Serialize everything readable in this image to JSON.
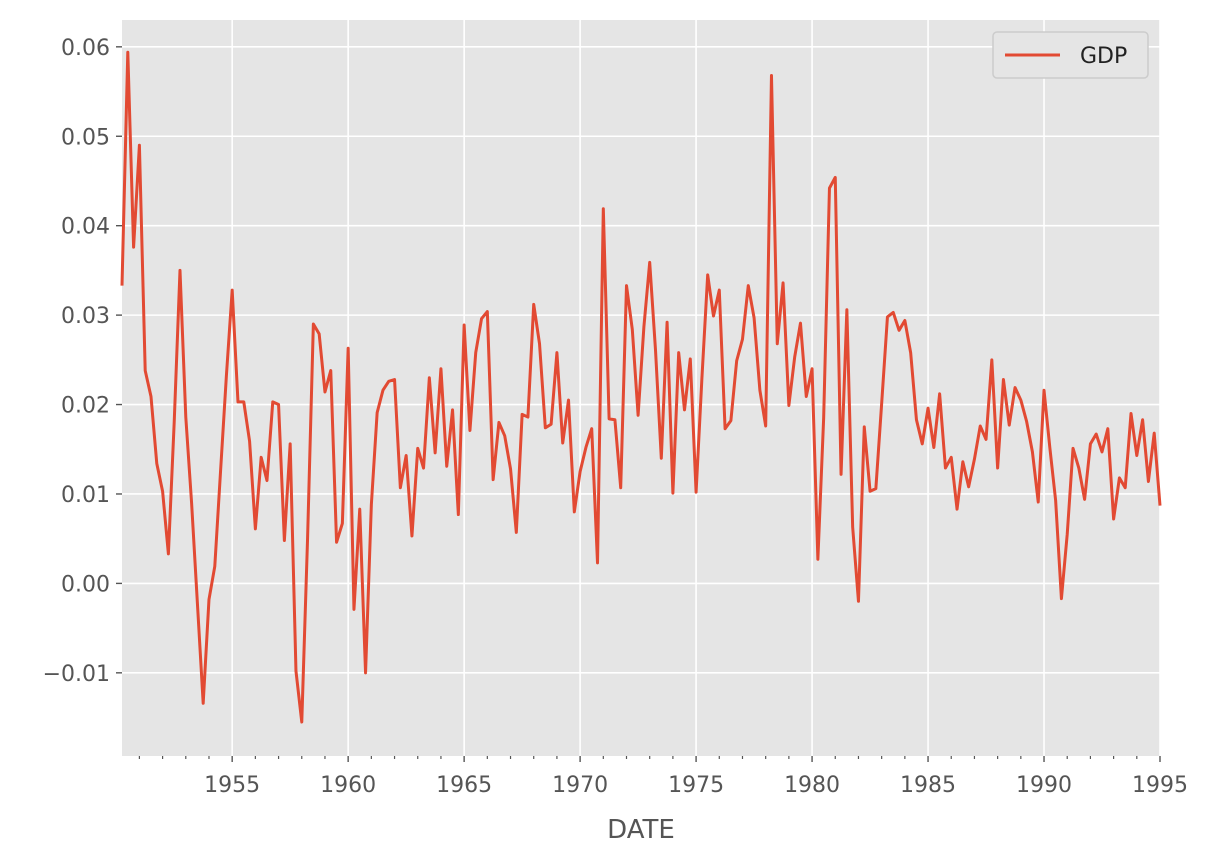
{
  "chart_data": {
    "type": "line",
    "title": "",
    "xlabel": "DATE",
    "ylabel": "",
    "xlim": [
      1950.25,
      1995.0
    ],
    "ylim": [
      -0.0193,
      0.063
    ],
    "x_ticks": [
      1955,
      1960,
      1965,
      1970,
      1975,
      1980,
      1985,
      1990,
      1995
    ],
    "x_tick_labels": [
      "1955",
      "1960",
      "1965",
      "1970",
      "1975",
      "1980",
      "1985",
      "1990",
      "1995"
    ],
    "y_ticks": [
      -0.01,
      0.0,
      0.01,
      0.02,
      0.03,
      0.04,
      0.05,
      0.06
    ],
    "y_tick_labels": [
      "−0.01",
      "0.00",
      "0.01",
      "0.02",
      "0.03",
      "0.04",
      "0.05",
      "0.06"
    ],
    "grid": true,
    "legend": {
      "position": "top-right"
    },
    "colors": {
      "series": "#e24a33",
      "plot_background": "#e5e5e5",
      "grid": "#ffffff"
    },
    "series": [
      {
        "name": "GDP",
        "x": [
          1950.25,
          1950.5,
          1950.75,
          1951.0,
          1951.25,
          1951.5,
          1951.75,
          1952.0,
          1952.25,
          1952.5,
          1952.75,
          1953.0,
          1953.25,
          1953.5,
          1953.75,
          1954.0,
          1954.25,
          1954.5,
          1954.75,
          1955.0,
          1955.25,
          1955.5,
          1955.75,
          1956.0,
          1956.25,
          1956.5,
          1956.75,
          1957.0,
          1957.25,
          1957.5,
          1957.75,
          1958.0,
          1958.25,
          1958.5,
          1958.75,
          1959.0,
          1959.25,
          1959.5,
          1959.75,
          1960.0,
          1960.25,
          1960.5,
          1960.75,
          1961.0,
          1961.25,
          1961.5,
          1961.75,
          1962.0,
          1962.25,
          1962.5,
          1962.75,
          1963.0,
          1963.25,
          1963.5,
          1963.75,
          1964.0,
          1964.25,
          1964.5,
          1964.75,
          1965.0,
          1965.25,
          1965.5,
          1965.75,
          1966.0,
          1966.25,
          1966.5,
          1966.75,
          1967.0,
          1967.25,
          1967.5,
          1967.75,
          1968.0,
          1968.25,
          1968.5,
          1968.75,
          1969.0,
          1969.25,
          1969.5,
          1969.75,
          1970.0,
          1970.25,
          1970.5,
          1970.75,
          1971.0,
          1971.25,
          1971.5,
          1971.75,
          1972.0,
          1972.25,
          1972.5,
          1972.75,
          1973.0,
          1973.25,
          1973.5,
          1973.75,
          1974.0,
          1974.25,
          1974.5,
          1974.75,
          1975.0,
          1975.25,
          1975.5,
          1975.75,
          1976.0,
          1976.25,
          1976.5,
          1976.75,
          1977.0,
          1977.25,
          1977.5,
          1977.75,
          1978.0,
          1978.25,
          1978.5,
          1978.75,
          1979.0,
          1979.25,
          1979.5,
          1979.75,
          1980.0,
          1980.25,
          1980.5,
          1980.75,
          1981.0,
          1981.25,
          1981.5,
          1981.75,
          1982.0,
          1982.25,
          1982.5,
          1982.75,
          1983.0,
          1983.25,
          1983.5,
          1983.75,
          1984.0,
          1984.25,
          1984.5,
          1984.75,
          1985.0,
          1985.25,
          1985.5,
          1985.75,
          1986.0,
          1986.25,
          1986.5,
          1986.75,
          1987.0,
          1987.25,
          1987.5,
          1987.75,
          1988.0,
          1988.25,
          1988.5,
          1988.75,
          1989.0,
          1989.25,
          1989.5,
          1989.75,
          1990.0,
          1990.25,
          1990.5,
          1990.75,
          1991.0,
          1991.25,
          1991.5,
          1991.75,
          1992.0,
          1992.25,
          1992.5,
          1992.75,
          1993.0,
          1993.25,
          1993.5,
          1993.75,
          1994.0,
          1994.25,
          1994.5,
          1994.75,
          1995.0
        ],
        "values": [
          0.0333,
          0.0594,
          0.0376,
          0.049,
          0.0238,
          0.0209,
          0.0134,
          0.0103,
          0.0033,
          0.018,
          0.035,
          0.0186,
          0.009,
          -0.0022,
          -0.0134,
          -0.0018,
          0.0019,
          0.0126,
          0.0232,
          0.0328,
          0.0203,
          0.0203,
          0.0159,
          0.0061,
          0.0141,
          0.0115,
          0.0203,
          0.02,
          0.0048,
          0.0156,
          -0.0098,
          -0.0155,
          0.005,
          0.029,
          0.0279,
          0.0214,
          0.0238,
          0.0046,
          0.0067,
          0.0263,
          -0.0029,
          0.0083,
          -0.01,
          0.0088,
          0.0191,
          0.0216,
          0.0226,
          0.0228,
          0.0107,
          0.0143,
          0.0053,
          0.0151,
          0.0129,
          0.023,
          0.0146,
          0.024,
          0.0131,
          0.0194,
          0.0077,
          0.0289,
          0.0171,
          0.0258,
          0.0296,
          0.0304,
          0.0116,
          0.018,
          0.0165,
          0.0128,
          0.0057,
          0.0189,
          0.0186,
          0.0312,
          0.0268,
          0.0174,
          0.0178,
          0.0258,
          0.0157,
          0.0205,
          0.008,
          0.0125,
          0.0152,
          0.0173,
          0.0023,
          0.0419,
          0.0184,
          0.0183,
          0.0107,
          0.0333,
          0.0284,
          0.0188,
          0.0287,
          0.0359,
          0.0261,
          0.014,
          0.0292,
          0.0101,
          0.0258,
          0.0194,
          0.0251,
          0.0102,
          0.0229,
          0.0345,
          0.0299,
          0.0328,
          0.0173,
          0.0182,
          0.0249,
          0.0273,
          0.0333,
          0.0297,
          0.0216,
          0.0176,
          0.0568,
          0.0268,
          0.0336,
          0.0199,
          0.0253,
          0.0291,
          0.0209,
          0.024,
          0.0027,
          0.0185,
          0.0442,
          0.0454,
          0.0122,
          0.0306,
          0.0063,
          -0.002,
          0.0175,
          0.0103,
          0.0106,
          0.0201,
          0.0298,
          0.0303,
          0.0283,
          0.0294,
          0.0258,
          0.0183,
          0.0156,
          0.0196,
          0.0152,
          0.0212,
          0.0129,
          0.0141,
          0.0083,
          0.0136,
          0.0108,
          0.0139,
          0.0176,
          0.0161,
          0.025,
          0.0129,
          0.0228,
          0.0177,
          0.0219,
          0.0205,
          0.0181,
          0.0147,
          0.0091,
          0.0216,
          0.0152,
          0.0093,
          -0.0017,
          0.0055,
          0.0151,
          0.0129,
          0.0094,
          0.0156,
          0.0167,
          0.0147,
          0.0173,
          0.0072,
          0.0118,
          0.0107,
          0.019,
          0.0143,
          0.0183,
          0.0114,
          0.0168,
          0.0087
        ]
      }
    ]
  }
}
